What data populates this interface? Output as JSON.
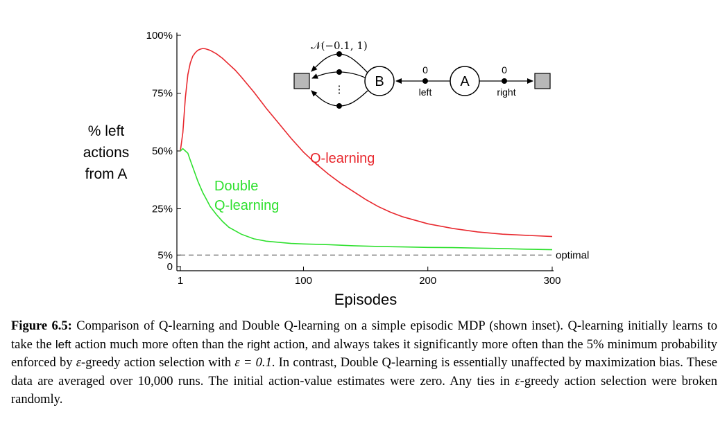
{
  "chart_data": {
    "type": "line",
    "ylabel_lines": [
      "% left",
      "actions",
      "from A"
    ],
    "xlabel": "Episodes",
    "xlim": [
      1,
      300
    ],
    "ylim": [
      0,
      100
    ],
    "x_ticks": [
      {
        "value": 1,
        "label": "1"
      },
      {
        "value": 100,
        "label": "100"
      },
      {
        "value": 200,
        "label": "200"
      },
      {
        "value": 300,
        "label": "300"
      }
    ],
    "y_ticks": [
      {
        "value": 0,
        "label": "0"
      },
      {
        "value": 5,
        "label": "5%"
      },
      {
        "value": 25,
        "label": "25%"
      },
      {
        "value": 50,
        "label": "50%"
      },
      {
        "value": 75,
        "label": "75%"
      },
      {
        "value": 100,
        "label": "100%"
      }
    ],
    "series": [
      {
        "name": "Q-learning",
        "color": "#e8282e",
        "x": [
          1,
          3,
          5,
          7,
          9,
          11,
          13,
          15,
          17,
          19,
          21,
          25,
          30,
          35,
          40,
          45,
          50,
          60,
          70,
          80,
          90,
          100,
          110,
          120,
          130,
          140,
          150,
          160,
          170,
          180,
          190,
          200,
          220,
          240,
          260,
          280,
          300
        ],
        "values": [
          50,
          58,
          73,
          83,
          88,
          91,
          92.5,
          93.5,
          94,
          94.3,
          94.2,
          93.5,
          92,
          90,
          87.5,
          85,
          82,
          75.5,
          68.5,
          62,
          55.5,
          49.5,
          44.5,
          40,
          36,
          32.5,
          29,
          26,
          23.5,
          21.5,
          20,
          18.5,
          16.5,
          15,
          14,
          13.5,
          13
        ]
      },
      {
        "name": "Double\nQ-learning",
        "color": "#2ee02e",
        "x": [
          1,
          3,
          5,
          7,
          9,
          11,
          13,
          15,
          17,
          19,
          21,
          25,
          30,
          35,
          40,
          50,
          60,
          70,
          80,
          90,
          100,
          120,
          140,
          160,
          180,
          200,
          220,
          240,
          260,
          280,
          300
        ],
        "values": [
          50,
          51,
          50,
          49,
          46,
          43,
          40,
          37,
          34.5,
          32,
          30,
          26,
          22.5,
          19.5,
          17,
          14,
          12,
          11,
          10.5,
          10,
          9.8,
          9.5,
          9,
          8.7,
          8.5,
          8.3,
          8.2,
          8,
          7.8,
          7.5,
          7.3
        ]
      }
    ],
    "reference_line": {
      "y": 5,
      "label": "optimal",
      "color": "#555555"
    }
  },
  "inset": {
    "distribution_label": "𝒩(−0.1, 1)",
    "node_b": "B",
    "node_a": "A",
    "reward_left": "0",
    "reward_right": "0",
    "action_left": "left",
    "action_right": "right",
    "dots": "⋮"
  },
  "caption": {
    "label": "Figure 6.5:",
    "p1": "Comparison of Q-learning and Double Q-learning on a simple episodic MDP (shown inset). Q-learning initially learns to take the",
    "left_word": "left",
    "p2": "action much more often than the",
    "right_word": "right",
    "p3": "action, and always takes it significantly more often than the 5% minimum probability enforced by",
    "eps1": "ε",
    "p4": "-greedy action selection with",
    "eps_eq": "ε = 0.1",
    "p5": ". In contrast, Double Q-learning is essentially unaffected by maximization bias. These data are averaged over 10,000 runs. The initial action-value estimates were zero. Any ties in",
    "eps2": "ε",
    "p6": "-greedy action selection were broken randomly."
  }
}
